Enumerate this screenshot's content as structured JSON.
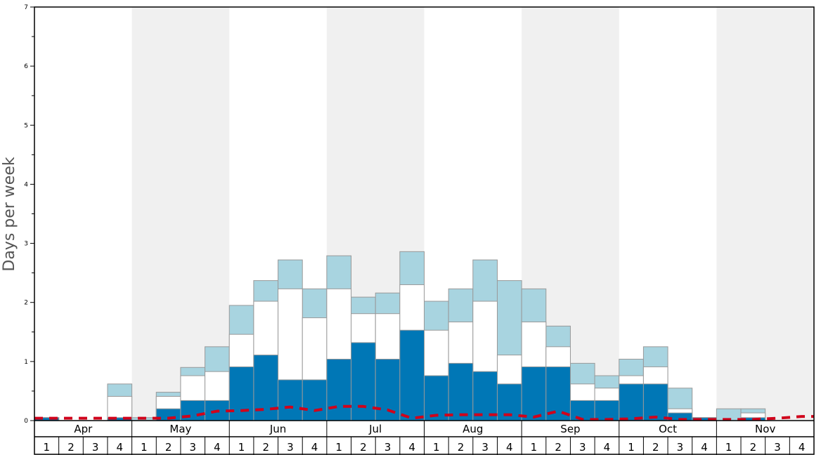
{
  "chart_data": {
    "type": "bar",
    "ylabel": "Days per week",
    "ylim": [
      0,
      7
    ],
    "yticks": [
      "0",
      "1",
      "2",
      "3",
      "4",
      "5",
      "6",
      "7"
    ],
    "months": [
      "Apr",
      "May",
      "Jun",
      "Jul",
      "Aug",
      "Sep",
      "Oct",
      "Nov"
    ],
    "weeks_per_month": [
      "1",
      "2",
      "3",
      "4"
    ],
    "colors": {
      "bottom": "#0077b6",
      "middle": "#ffffff",
      "top": "#a8d4e0",
      "line": "#d0021b",
      "shade": "#f0f0f0"
    },
    "series": [
      {
        "values": [
          0.05,
          0.0,
          0.0,
          0.05,
          0.0,
          0.2,
          0.34,
          0.34,
          0.91,
          1.11,
          0.69,
          0.69,
          1.04,
          1.32,
          1.04,
          1.53,
          0.76,
          0.97,
          0.83,
          0.62,
          0.91,
          0.91,
          0.34,
          0.34,
          0.62,
          0.62,
          0.13,
          0.05,
          0.0,
          0.05,
          0.0,
          0.0
        ]
      },
      {
        "values": [
          0.05,
          0.0,
          0.0,
          0.41,
          0.0,
          0.41,
          0.76,
          0.83,
          1.46,
          2.02,
          2.23,
          1.74,
          2.23,
          1.81,
          1.81,
          2.3,
          1.53,
          1.67,
          2.02,
          1.11,
          1.67,
          1.25,
          0.62,
          0.55,
          0.76,
          0.91,
          0.2,
          0.05,
          0.0,
          0.13,
          0.0,
          0.0
        ]
      },
      {
        "values": [
          0.05,
          0.0,
          0.0,
          0.62,
          0.05,
          0.48,
          0.9,
          1.25,
          1.95,
          2.37,
          2.72,
          2.23,
          2.79,
          2.09,
          2.16,
          2.86,
          2.02,
          2.23,
          2.72,
          2.37,
          2.23,
          1.6,
          0.97,
          0.76,
          1.04,
          1.25,
          0.55,
          0.05,
          0.2,
          0.2,
          0.0,
          0.0
        ]
      },
      {
        "values": [
          0.04,
          0.04,
          0.04,
          0.04,
          0.04,
          0.04,
          0.08,
          0.16,
          0.17,
          0.19,
          0.23,
          0.17,
          0.24,
          0.24,
          0.18,
          0.04,
          0.09,
          0.1,
          0.1,
          0.1,
          0.06,
          0.16,
          0.02,
          0.02,
          0.03,
          0.06,
          0.02,
          0.02,
          0.02,
          0.02,
          0.04,
          0.07
        ]
      }
    ]
  }
}
